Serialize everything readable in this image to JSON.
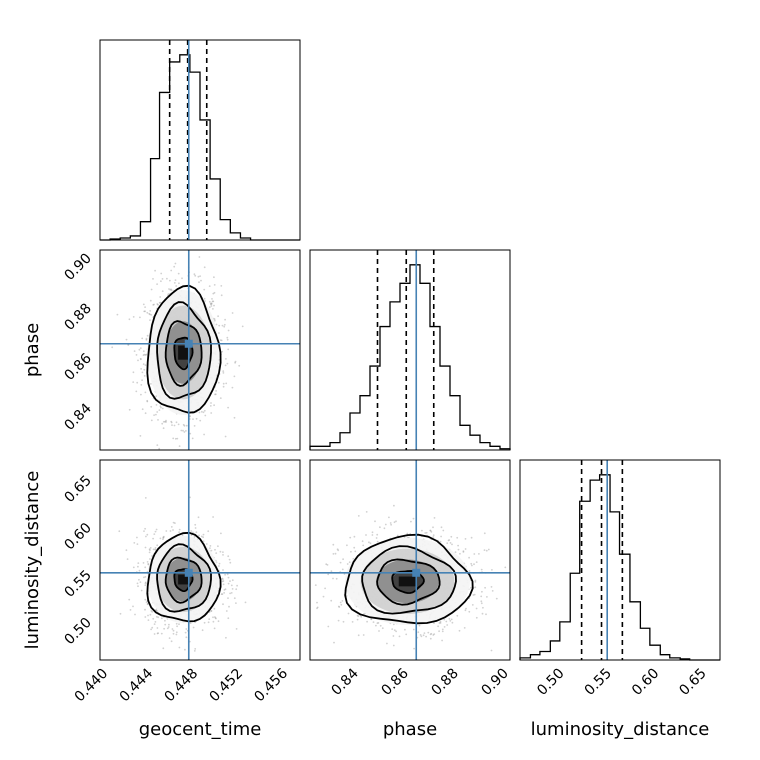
{
  "chart_data": {
    "type": "corner",
    "parameters": [
      "geocent_time",
      "phase",
      "luminosity_distance"
    ],
    "axis_labels": {
      "geocent_time": "geocent_time",
      "phase": "phase",
      "luminosity_distance": "luminosity_distance"
    },
    "ranges": {
      "geocent_time": [
        0.4396,
        0.4574
      ],
      "phase": [
        0.822,
        0.902
      ],
      "luminosity_distance": [
        0.457,
        0.668
      ]
    },
    "ticks": {
      "geocent_time": [
        0.44,
        0.444,
        0.448,
        0.452,
        0.456
      ],
      "phase": [
        0.84,
        0.86,
        0.88,
        0.9
      ],
      "luminosity_distance": [
        0.5,
        0.55,
        0.6,
        0.65
      ]
    },
    "tick_labels": {
      "geocent_time": [
        "0.440",
        "0.444",
        "0.448",
        "0.452",
        "0.456"
      ],
      "phase": [
        "0.84",
        "0.86",
        "0.88",
        "0.90"
      ],
      "luminosity_distance": [
        "0.50",
        "0.55",
        "0.60",
        "0.65"
      ]
    },
    "truths": {
      "geocent_time": 0.4475,
      "phase": 0.8645,
      "luminosity_distance": 0.549
    },
    "quantiles": {
      "geocent_time": [
        0.4458,
        0.4474,
        0.4491
      ],
      "phase": [
        0.849,
        0.8605,
        0.8715
      ],
      "luminosity_distance": [
        0.522,
        0.543,
        0.565
      ]
    },
    "marginals": {
      "geocent_time": {
        "bin_edges": [
          0.4396,
          0.4405,
          0.4414,
          0.4423,
          0.4432,
          0.4441,
          0.4449,
          0.4458,
          0.4467,
          0.4476,
          0.4485,
          0.4494,
          0.4503,
          0.4512,
          0.4521,
          0.453,
          0.4539,
          0.4547,
          0.4556,
          0.4565,
          0.4574
        ],
        "counts": [
          0,
          1,
          2,
          4,
          18,
          80,
          145,
          175,
          182,
          165,
          118,
          60,
          20,
          7,
          2,
          0,
          0,
          0,
          0,
          0
        ]
      },
      "phase": {
        "bin_edges": [
          0.822,
          0.826,
          0.83,
          0.834,
          0.838,
          0.842,
          0.846,
          0.85,
          0.854,
          0.858,
          0.862,
          0.866,
          0.87,
          0.874,
          0.878,
          0.882,
          0.886,
          0.89,
          0.894,
          0.898,
          0.902
        ],
        "counts": [
          3,
          3,
          6,
          14,
          30,
          44,
          68,
          100,
          120,
          135,
          150,
          135,
          100,
          68,
          44,
          20,
          12,
          6,
          3,
          1
        ]
      },
      "luminosity_distance": {
        "bin_edges": [
          0.457,
          0.468,
          0.478,
          0.489,
          0.499,
          0.51,
          0.52,
          0.531,
          0.541,
          0.552,
          0.562,
          0.573,
          0.584,
          0.594,
          0.605,
          0.615,
          0.626,
          0.636,
          0.647,
          0.657,
          0.668
        ],
        "counts": [
          2,
          5,
          8,
          18,
          36,
          82,
          150,
          170,
          175,
          140,
          100,
          55,
          30,
          14,
          5,
          2,
          1,
          0,
          0,
          0
        ]
      }
    },
    "pairs": [
      {
        "x": "geocent_time",
        "y": "phase",
        "center": [
          0.447,
          0.861
        ],
        "sigma": [
          0.0016,
          0.0125
        ]
      },
      {
        "x": "geocent_time",
        "y": "luminosity_distance",
        "center": [
          0.447,
          0.542
        ],
        "sigma": [
          0.0016,
          0.023
        ]
      },
      {
        "x": "phase",
        "y": "luminosity_distance",
        "center": [
          0.861,
          0.54
        ],
        "sigma": [
          0.0125,
          0.023
        ]
      }
    ],
    "grid": true,
    "truth_color": "#4682b4",
    "contour_levels_sigma": [
      0.5,
      1.0,
      1.5,
      2.0
    ]
  }
}
